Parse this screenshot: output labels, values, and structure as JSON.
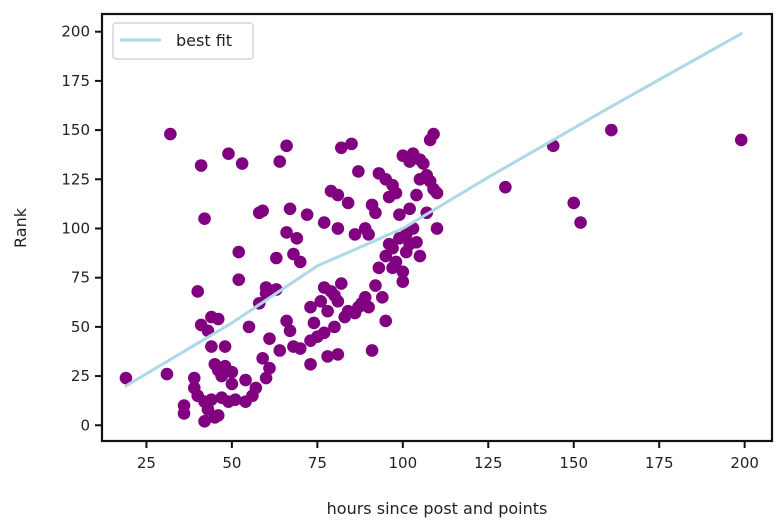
{
  "chart_data": {
    "type": "scatter",
    "title": "",
    "xlabel": "hours since post and points",
    "ylabel": "Rank",
    "xlim": [
      12,
      208
    ],
    "ylim": [
      -8,
      209
    ],
    "xticks": [
      25,
      50,
      75,
      100,
      125,
      150,
      175,
      200
    ],
    "yticks": [
      0,
      25,
      50,
      75,
      100,
      125,
      150,
      175,
      200
    ],
    "grid": false,
    "legend": {
      "position": "top-left",
      "entries": [
        "best fit"
      ]
    },
    "colors": {
      "points": "#800080",
      "fit_line": "#add8e6",
      "frame": "#111111"
    },
    "fit_line": {
      "name": "best fit",
      "points": [
        [
          19,
          20
        ],
        [
          50,
          52
        ],
        [
          75,
          81
        ],
        [
          100,
          100
        ],
        [
          125,
          126
        ],
        [
          160,
          161
        ],
        [
          199,
          199
        ]
      ]
    },
    "points": [
      [
        19,
        24
      ],
      [
        31,
        26
      ],
      [
        32,
        148
      ],
      [
        36,
        10
      ],
      [
        36,
        6
      ],
      [
        39,
        24
      ],
      [
        39,
        19
      ],
      [
        40,
        15
      ],
      [
        40,
        68
      ],
      [
        41,
        132
      ],
      [
        41,
        51
      ],
      [
        42,
        105
      ],
      [
        42,
        12
      ],
      [
        42,
        2
      ],
      [
        43,
        8
      ],
      [
        43,
        48
      ],
      [
        44,
        55
      ],
      [
        44,
        40
      ],
      [
        44,
        13
      ],
      [
        45,
        31
      ],
      [
        45,
        4
      ],
      [
        46,
        28
      ],
      [
        46,
        54
      ],
      [
        46,
        5
      ],
      [
        47,
        14
      ],
      [
        47,
        25
      ],
      [
        48,
        40
      ],
      [
        48,
        30
      ],
      [
        49,
        138
      ],
      [
        49,
        12
      ],
      [
        50,
        27
      ],
      [
        50,
        21
      ],
      [
        51,
        13
      ],
      [
        52,
        88
      ],
      [
        52,
        74
      ],
      [
        53,
        133
      ],
      [
        54,
        23
      ],
      [
        54,
        12
      ],
      [
        55,
        50
      ],
      [
        56,
        15
      ],
      [
        57,
        19
      ],
      [
        58,
        108
      ],
      [
        58,
        62
      ],
      [
        59,
        109
      ],
      [
        59,
        34
      ],
      [
        60,
        70
      ],
      [
        60,
        67
      ],
      [
        60,
        24
      ],
      [
        61,
        44
      ],
      [
        61,
        29
      ],
      [
        63,
        85
      ],
      [
        63,
        69
      ],
      [
        64,
        134
      ],
      [
        64,
        38
      ],
      [
        66,
        142
      ],
      [
        66,
        98
      ],
      [
        66,
        53
      ],
      [
        67,
        110
      ],
      [
        67,
        48
      ],
      [
        68,
        87
      ],
      [
        68,
        40
      ],
      [
        69,
        95
      ],
      [
        70,
        83
      ],
      [
        70,
        39
      ],
      [
        72,
        107
      ],
      [
        73,
        60
      ],
      [
        73,
        43
      ],
      [
        73,
        31
      ],
      [
        74,
        52
      ],
      [
        75,
        45
      ],
      [
        76,
        63
      ],
      [
        77,
        103
      ],
      [
        77,
        70
      ],
      [
        77,
        47
      ],
      [
        78,
        58
      ],
      [
        78,
        35
      ],
      [
        79,
        119
      ],
      [
        79,
        68
      ],
      [
        80,
        66
      ],
      [
        80,
        50
      ],
      [
        81,
        117
      ],
      [
        81,
        100
      ],
      [
        81,
        63
      ],
      [
        81,
        36
      ],
      [
        82,
        141
      ],
      [
        82,
        72
      ],
      [
        83,
        55
      ],
      [
        84,
        113
      ],
      [
        84,
        58
      ],
      [
        85,
        143
      ],
      [
        86,
        97
      ],
      [
        86,
        57
      ],
      [
        87,
        129
      ],
      [
        87,
        60
      ],
      [
        88,
        62
      ],
      [
        89,
        100
      ],
      [
        89,
        65
      ],
      [
        90,
        97
      ],
      [
        90,
        60
      ],
      [
        91,
        112
      ],
      [
        91,
        38
      ],
      [
        92,
        108
      ],
      [
        92,
        71
      ],
      [
        93,
        128
      ],
      [
        93,
        80
      ],
      [
        94,
        65
      ],
      [
        95,
        125
      ],
      [
        95,
        86
      ],
      [
        95,
        53
      ],
      [
        96,
        116
      ],
      [
        96,
        92
      ],
      [
        97,
        122
      ],
      [
        97,
        80
      ],
      [
        97,
        90
      ],
      [
        98,
        118
      ],
      [
        98,
        83
      ],
      [
        99,
        107
      ],
      [
        99,
        95
      ],
      [
        100,
        137
      ],
      [
        100,
        78
      ],
      [
        100,
        73
      ],
      [
        101,
        88
      ],
      [
        101,
        97
      ],
      [
        102,
        134
      ],
      [
        102,
        110
      ],
      [
        102,
        92
      ],
      [
        103,
        138
      ],
      [
        103,
        100
      ],
      [
        104,
        117
      ],
      [
        104,
        93
      ],
      [
        105,
        135
      ],
      [
        105,
        125
      ],
      [
        105,
        86
      ],
      [
        106,
        133
      ],
      [
        107,
        127
      ],
      [
        107,
        108
      ],
      [
        108,
        124
      ],
      [
        108,
        145
      ],
      [
        109,
        148
      ],
      [
        109,
        120
      ],
      [
        110,
        100
      ],
      [
        110,
        118
      ],
      [
        130,
        121
      ],
      [
        144,
        142
      ],
      [
        150,
        113
      ],
      [
        152,
        103
      ],
      [
        161,
        150
      ],
      [
        199,
        145
      ]
    ]
  }
}
